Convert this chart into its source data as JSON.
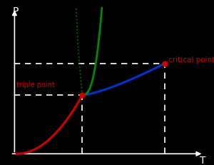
{
  "bg_color": "#000000",
  "ax_color": "#ffffff",
  "xlabel": "T",
  "ylabel": "P",
  "triple_point": [
    0.38,
    0.42
  ],
  "critical_point": [
    0.78,
    0.62
  ],
  "triple_label": "triple point",
  "critical_label": "critical point",
  "label_color": "#cc0000",
  "point_color": "#cc0000",
  "curve_red_color": "#cc0000",
  "curve_green_color": "#008800",
  "curve_blue_color": "#0033cc",
  "dashed_color": "#ffffff",
  "figsize": [
    3.0,
    2.31
  ],
  "dpi": 100,
  "arrow_color": "#ffffff"
}
